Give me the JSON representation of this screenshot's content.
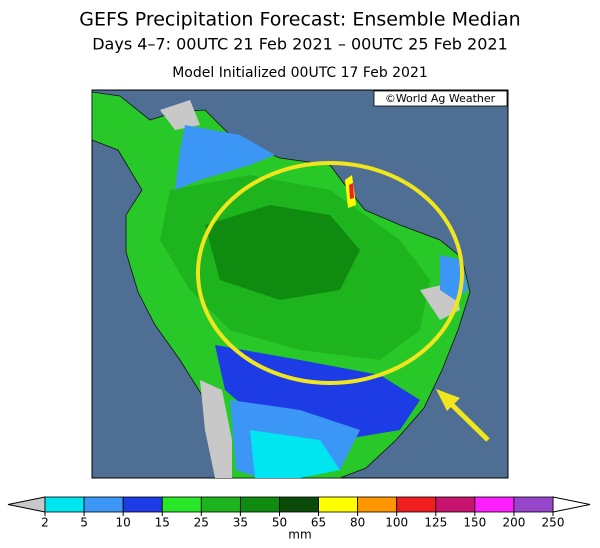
{
  "header": {
    "title": "GEFS Precipitation Forecast: Ensemble Median",
    "subtitle": "Days 4–7: 00UTC 21 Feb 2021 – 00UTC 25 Feb 2021",
    "init": "Model Initialized 00UTC 17 Feb 2021"
  },
  "map": {
    "credit": "©World Ag Weather"
  },
  "legend": {
    "unit": "mm",
    "ticks": [
      2,
      5,
      10,
      15,
      25,
      35,
      50,
      65,
      80,
      100,
      125,
      150,
      200,
      250
    ],
    "under_color": "#c8c8c8",
    "over_color": "#ffffff",
    "colors": [
      "#00e6f0",
      "#3c96f5",
      "#1e3ce6",
      "#28e628",
      "#1eb41e",
      "#0f8c0f",
      "#0a4b0a",
      "#ffff00",
      "#ff9600",
      "#f01e1e",
      "#c8146e",
      "#ff1eff",
      "#9646c8"
    ]
  }
}
